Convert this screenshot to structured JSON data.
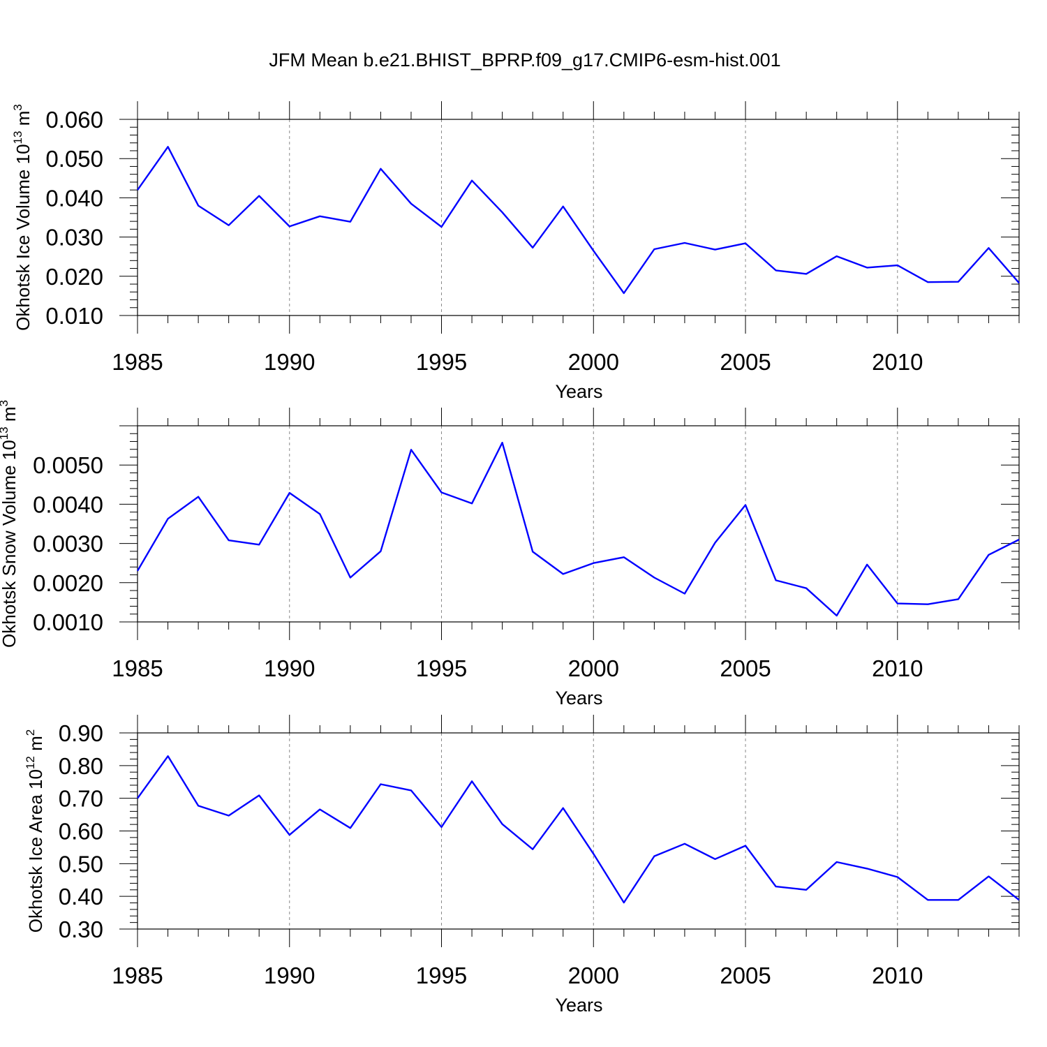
{
  "title": "JFM Mean b.e21.BHIST_BPRP.f09_g17.CMIP6-esm-hist.001",
  "colors": {
    "series": "#0000ff",
    "axis": "#000000",
    "grid": "#888888"
  },
  "chart_data": [
    {
      "type": "line",
      "xlabel": "Years",
      "ylabel": {
        "text": "Okhotsk Ice Volume 10",
        "exponent": "13",
        "unit": " m",
        "unit_exponent": "3"
      },
      "xlim": [
        1985,
        2014
      ],
      "ylim": [
        0.01,
        0.06
      ],
      "grid": "vertical dashed at labeled years",
      "xticks": [
        1985,
        1990,
        1995,
        2000,
        2005,
        2010
      ],
      "xtick_labels": [
        "1985",
        "1990",
        "1995",
        "2000",
        "2005",
        "2010"
      ],
      "yticks": [
        0.01,
        0.02,
        0.03,
        0.04,
        0.05,
        0.06
      ],
      "ytick_labels": [
        "0.010",
        "0.020",
        "0.030",
        "0.040",
        "0.050",
        "0.060"
      ],
      "x": [
        1985,
        1986,
        1987,
        1988,
        1989,
        1990,
        1991,
        1992,
        1993,
        1994,
        1995,
        1996,
        1997,
        1998,
        1999,
        2000,
        2001,
        2002,
        2003,
        2004,
        2005,
        2006,
        2007,
        2008,
        2009,
        2010,
        2011,
        2012,
        2013,
        2014
      ],
      "values": [
        0.042,
        0.053,
        0.038,
        0.033,
        0.0405,
        0.0327,
        0.0353,
        0.0339,
        0.0474,
        0.0385,
        0.0326,
        0.0444,
        0.0363,
        0.0273,
        0.0378,
        0.0265,
        0.0157,
        0.0269,
        0.0285,
        0.0268,
        0.0284,
        0.0215,
        0.0206,
        0.0251,
        0.0222,
        0.0228,
        0.0185,
        0.0186,
        0.0272,
        0.0183
      ]
    },
    {
      "type": "line",
      "xlabel": "Years",
      "ylabel": {
        "text": "Okhotsk Snow Volume 10",
        "exponent": "13",
        "unit": " m",
        "unit_exponent": "3"
      },
      "xlim": [
        1985,
        2014
      ],
      "ylim": [
        0.001,
        0.006
      ],
      "grid": "vertical dashed at labeled years",
      "xticks": [
        1985,
        1990,
        1995,
        2000,
        2005,
        2010
      ],
      "xtick_labels": [
        "1985",
        "1990",
        "1995",
        "2000",
        "2005",
        "2010"
      ],
      "yticks": [
        0.001,
        0.002,
        0.003,
        0.004,
        0.005
      ],
      "ytick_labels": [
        "0.0010",
        "0.0020",
        "0.0030",
        "0.0040",
        "0.0050"
      ],
      "x": [
        1985,
        1986,
        1987,
        1988,
        1989,
        1990,
        1991,
        1992,
        1993,
        1994,
        1995,
        1996,
        1997,
        1998,
        1999,
        2000,
        2001,
        2002,
        2003,
        2004,
        2005,
        2006,
        2007,
        2008,
        2009,
        2010,
        2011,
        2012,
        2013,
        2014
      ],
      "values": [
        0.0023,
        0.00363,
        0.00419,
        0.00308,
        0.00297,
        0.00429,
        0.00375,
        0.00213,
        0.0028,
        0.00539,
        0.0043,
        0.00402,
        0.00557,
        0.00279,
        0.00222,
        0.0025,
        0.00265,
        0.00213,
        0.00172,
        0.00302,
        0.00398,
        0.00206,
        0.00186,
        0.00116,
        0.00246,
        0.00147,
        0.00145,
        0.00158,
        0.00271,
        0.0031
      ]
    },
    {
      "type": "line",
      "xlabel": "Years",
      "ylabel": {
        "text": "Okhotsk Ice Area 10",
        "exponent": "12",
        "unit": " m",
        "unit_exponent": "2"
      },
      "xlim": [
        1985,
        2014
      ],
      "ylim": [
        0.3,
        0.9
      ],
      "grid": "vertical dashed at labeled years",
      "xticks": [
        1985,
        1990,
        1995,
        2000,
        2005,
        2010
      ],
      "xtick_labels": [
        "1985",
        "1990",
        "1995",
        "2000",
        "2005",
        "2010"
      ],
      "yticks": [
        0.3,
        0.4,
        0.5,
        0.6,
        0.7,
        0.8,
        0.9
      ],
      "ytick_labels": [
        "0.30",
        "0.40",
        "0.50",
        "0.60",
        "0.70",
        "0.80",
        "0.90"
      ],
      "x": [
        1985,
        1986,
        1987,
        1988,
        1989,
        1990,
        1991,
        1992,
        1993,
        1994,
        1995,
        1996,
        1997,
        1998,
        1999,
        2000,
        2001,
        2002,
        2003,
        2004,
        2005,
        2006,
        2007,
        2008,
        2009,
        2010,
        2011,
        2012,
        2013,
        2014
      ],
      "values": [
        0.7,
        0.829,
        0.677,
        0.647,
        0.709,
        0.588,
        0.666,
        0.609,
        0.743,
        0.724,
        0.612,
        0.752,
        0.621,
        0.544,
        0.67,
        0.53,
        0.381,
        0.523,
        0.561,
        0.514,
        0.555,
        0.43,
        0.42,
        0.505,
        0.485,
        0.459,
        0.389,
        0.389,
        0.461,
        0.389
      ]
    }
  ]
}
